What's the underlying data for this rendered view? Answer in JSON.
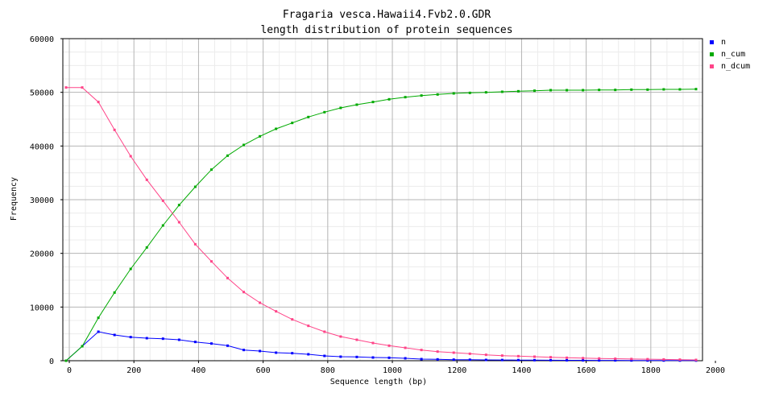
{
  "chart_data": {
    "type": "line",
    "title": "Fragaria vesca.Hawaii4.Fvb2.0.GDR",
    "subtitle": "length distribution of protein sequences",
    "xlabel": "Sequence length (bp)",
    "ylabel": "Frequency",
    "xlim": [
      -20,
      1960
    ],
    "ylim": [
      0,
      60000
    ],
    "xticks": [
      "0",
      "200",
      "400",
      "600",
      "800",
      "1000",
      "1200",
      "1400",
      "1600",
      "1800",
      "2000"
    ],
    "yticks": [
      "0",
      "10000",
      "20000",
      "30000",
      "40000",
      "50000",
      "60000"
    ],
    "grid": true,
    "legend_position": "top-right",
    "x": [
      -10,
      40,
      90,
      140,
      190,
      240,
      290,
      340,
      390,
      440,
      490,
      540,
      590,
      640,
      690,
      740,
      790,
      840,
      890,
      940,
      990,
      1040,
      1090,
      1140,
      1190,
      1240,
      1290,
      1340,
      1390,
      1440,
      1490,
      1540,
      1590,
      1640,
      1690,
      1740,
      1790,
      1840,
      1890,
      1940
    ],
    "series": [
      {
        "name": "n",
        "color": "#0000ff",
        "values": [
          0,
          2700,
          5400,
          4800,
          4400,
          4200,
          4100,
          3900,
          3500,
          3200,
          2800,
          2000,
          1800,
          1500,
          1400,
          1200,
          900,
          750,
          700,
          600,
          550,
          450,
          300,
          250,
          200,
          180,
          150,
          130,
          120,
          100,
          90,
          80,
          70,
          60,
          60,
          50,
          40,
          40,
          35,
          30
        ]
      },
      {
        "name": "n_cum",
        "color": "#00aa00",
        "values": [
          0,
          2700,
          8000,
          12700,
          17100,
          21100,
          25200,
          29000,
          32400,
          35600,
          38200,
          40200,
          41800,
          43200,
          44300,
          45400,
          46300,
          47100,
          47700,
          48200,
          48700,
          49100,
          49400,
          49600,
          49800,
          49900,
          50000,
          50100,
          50200,
          50300,
          50400,
          50400,
          50400,
          50450,
          50450,
          50500,
          50500,
          50550,
          50550,
          50600
        ]
      },
      {
        "name": "n_dcum",
        "color": "#ff4488",
        "values": [
          50900,
          50900,
          48200,
          43000,
          38100,
          33700,
          29800,
          25800,
          21700,
          18500,
          15400,
          12800,
          10800,
          9200,
          7700,
          6500,
          5400,
          4500,
          3900,
          3300,
          2800,
          2400,
          2000,
          1700,
          1500,
          1300,
          1100,
          950,
          850,
          750,
          650,
          550,
          480,
          420,
          370,
          320,
          280,
          240,
          200,
          150
        ]
      }
    ]
  }
}
